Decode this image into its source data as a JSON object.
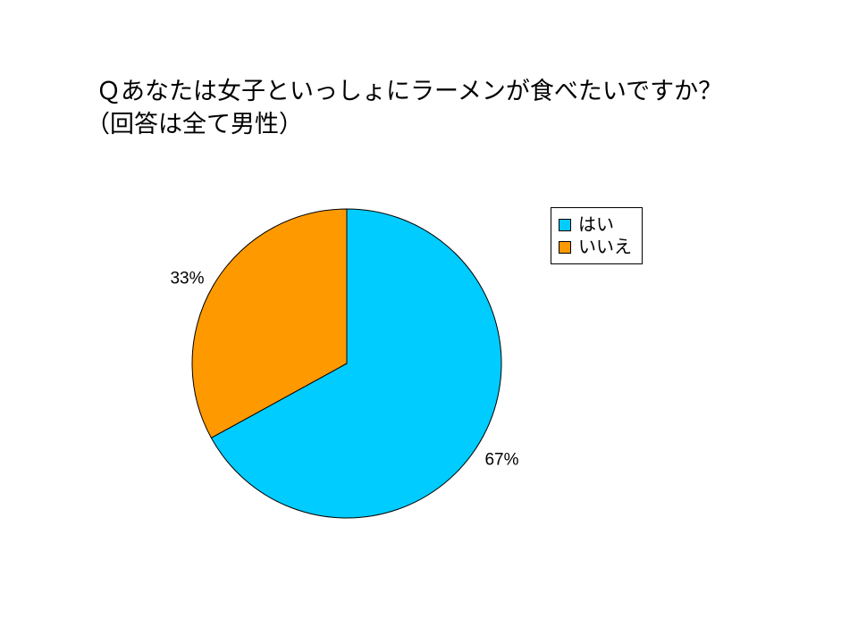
{
  "title": {
    "line1": "Ｑあなたは女子といっしょにラーメンが食べたいですか？",
    "line2": "（回答は全て男性）"
  },
  "chart_data": {
    "type": "pie",
    "categories": [
      "はい",
      "いいえ"
    ],
    "values": [
      67,
      33
    ],
    "labels": [
      "67%",
      "33%"
    ],
    "colors": [
      "#00ccff",
      "#ff9900"
    ],
    "start": "12 o'clock",
    "direction": "clockwise",
    "legend_position": "right"
  }
}
